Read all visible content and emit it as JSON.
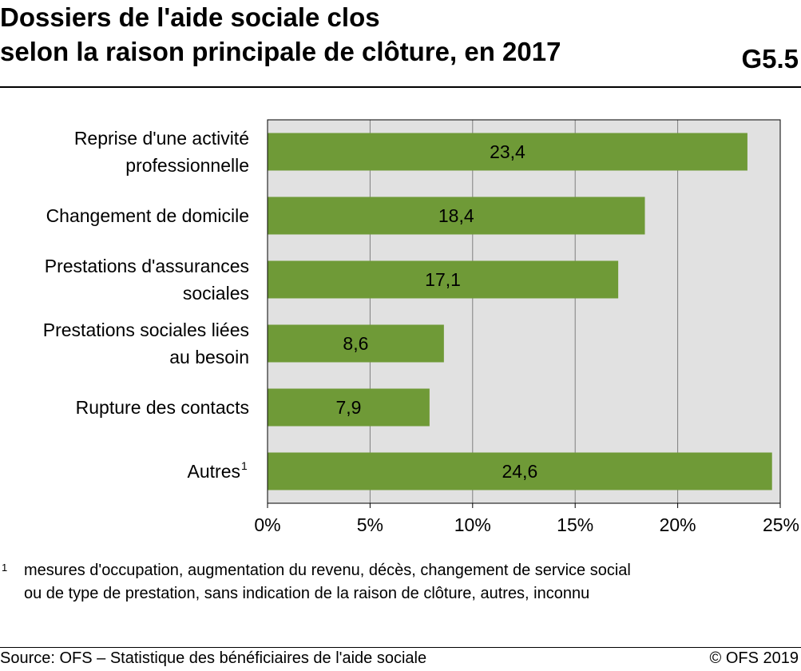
{
  "header": {
    "title_line1": "Dossiers de l'aide sociale clos",
    "title_line2": "selon la raison principale de clôture, en 2017",
    "code": "G5.5"
  },
  "chart_data": {
    "type": "bar",
    "orientation": "horizontal",
    "categories": [
      [
        "Reprise d'une activité",
        "professionnelle"
      ],
      [
        "Changement de domicile"
      ],
      [
        "Prestations d'assurances",
        "sociales"
      ],
      [
        "Prestations sociales liées",
        "au besoin"
      ],
      [
        "Rupture des contacts"
      ],
      [
        "Autres"
      ]
    ],
    "category_superscripts": [
      "",
      "",
      "",
      "",
      "",
      "1"
    ],
    "values": [
      23.4,
      18.4,
      17.1,
      8.6,
      7.9,
      24.6
    ],
    "value_labels": [
      "23,4",
      "18,4",
      "17,1",
      "8,6",
      "7,9",
      "24,6"
    ],
    "xlim": [
      0,
      25
    ],
    "x_ticks": [
      0,
      5,
      10,
      15,
      20,
      25
    ],
    "x_tick_labels": [
      "0%",
      "5%",
      "10%",
      "15%",
      "20%",
      "25%"
    ],
    "grid": true,
    "bar_color": "#6f9a37",
    "plot_background": "#e1e1e1",
    "grid_color": "#7f7f7f"
  },
  "footnote": {
    "marker": "1",
    "line1": "mesures d'occupation, augmentation du revenu, décès, changement de service social",
    "line2": "ou de type de prestation, sans indication de la raison de clôture, autres, inconnu"
  },
  "footer": {
    "source": "Source: OFS – Statistique des bénéficiaires de l'aide sociale",
    "copyright": "© OFS 2019"
  }
}
